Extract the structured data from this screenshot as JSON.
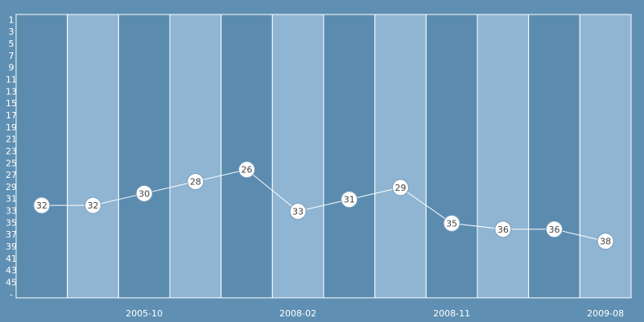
{
  "chart_data": {
    "type": "line",
    "categories": [
      null,
      null,
      "2005-10",
      null,
      null,
      "2008-02",
      null,
      null,
      "2008-11",
      null,
      null,
      "2009-08"
    ],
    "series": [
      {
        "color": "#ffffff",
        "values": [
          32,
          32,
          30,
          28,
          26,
          33,
          31,
          29,
          35,
          36,
          36,
          38
        ]
      }
    ],
    "ylim": [
      47.5,
      0
    ],
    "yticks": [
      1,
      3,
      5,
      7,
      9,
      11,
      13,
      15,
      17,
      19,
      21,
      23,
      25,
      27,
      29,
      31,
      33,
      35,
      37,
      39,
      41,
      43,
      45,
      {
        "value": 47,
        "label": "-"
      }
    ]
  }
}
